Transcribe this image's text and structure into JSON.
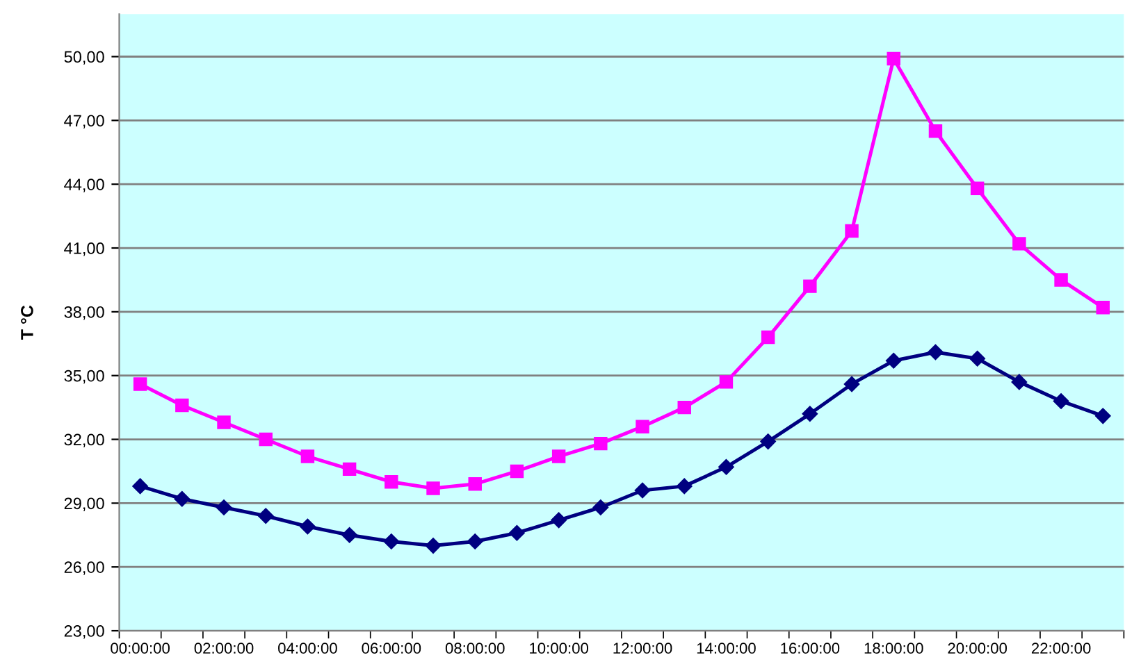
{
  "chart_data": {
    "type": "line",
    "ylabel": "T °C",
    "categories": [
      "00:00:00",
      null,
      "02:00:00",
      null,
      "04:00:00",
      null,
      "06:00:00",
      null,
      "08:00:00",
      null,
      "10:00:00",
      null,
      "12:00:00",
      null,
      "14:00:00",
      null,
      "16:00:00",
      null,
      "18:00:00",
      null,
      "20:00:00",
      null,
      "22:00:00",
      null
    ],
    "series": [
      {
        "color": "#ff00ff",
        "marker": "square",
        "values": [
          34.6,
          33.6,
          32.8,
          32.0,
          31.2,
          30.6,
          30.0,
          29.7,
          29.9,
          30.5,
          31.2,
          31.8,
          32.6,
          33.5,
          34.7,
          36.8,
          39.2,
          41.8,
          49.9,
          46.5,
          43.8,
          41.2,
          39.5,
          38.2
        ]
      },
      {
        "color": "#000080",
        "marker": "diamond",
        "values": [
          29.8,
          29.2,
          28.8,
          28.4,
          27.9,
          27.5,
          27.2,
          27.0,
          27.2,
          27.6,
          28.2,
          28.8,
          29.6,
          29.8,
          30.7,
          31.9,
          33.2,
          34.6,
          35.7,
          36.1,
          35.8,
          34.7,
          33.8,
          33.1
        ]
      }
    ],
    "ylim": [
      23,
      52
    ],
    "yticks": [
      {
        "value": 23,
        "label": "23,00"
      },
      {
        "value": 26,
        "label": "26,00"
      },
      {
        "value": 29,
        "label": "29,00"
      },
      {
        "value": 32,
        "label": "32,00"
      },
      {
        "value": 35,
        "label": "35,00"
      },
      {
        "value": 38,
        "label": "38,00"
      },
      {
        "value": 41,
        "label": "41,00"
      },
      {
        "value": 44,
        "label": "44,00"
      },
      {
        "value": 47,
        "label": "47,00"
      },
      {
        "value": 50,
        "label": "50,00"
      }
    ],
    "grid": "y",
    "line_style": "solid"
  }
}
